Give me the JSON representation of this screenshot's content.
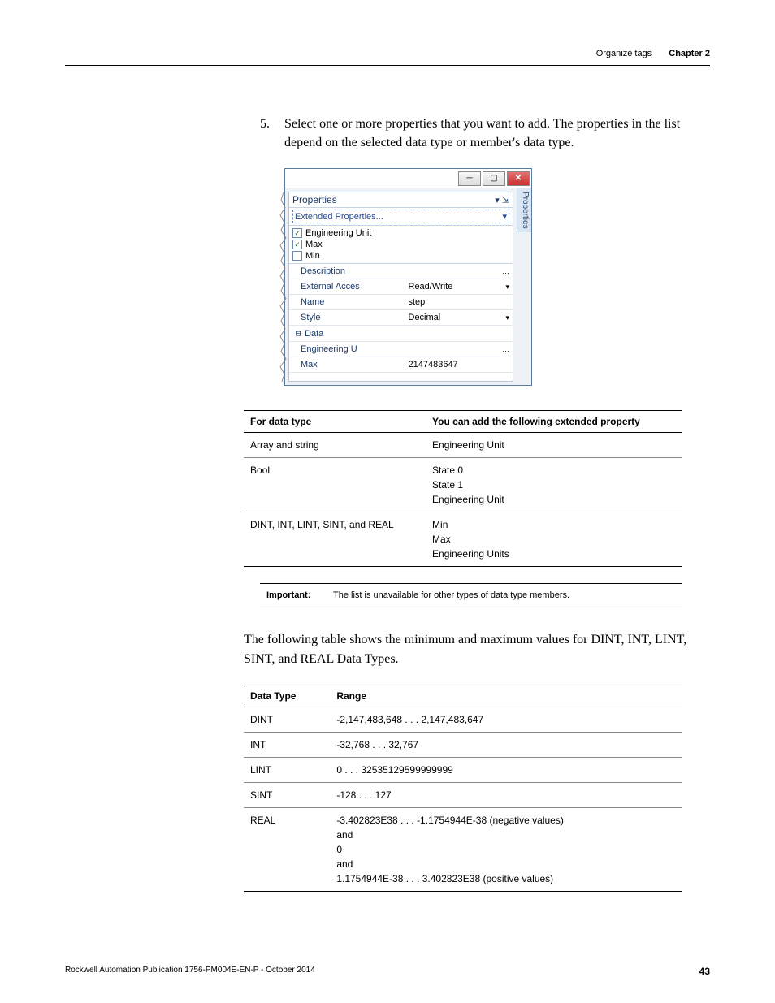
{
  "header": {
    "section": "Organize tags",
    "chapter": "Chapter 2"
  },
  "step": {
    "number": "5.",
    "text": "Select one or more properties that you want to add. The properties in the list depend on the selected data type or member's data type."
  },
  "panel": {
    "properties_label": "Properties",
    "dropdown_label": "Extended Properties...",
    "side_tab": "Properties",
    "checklist": [
      {
        "checked": true,
        "label": "Engineering Unit"
      },
      {
        "checked": true,
        "label": "Max"
      },
      {
        "checked": false,
        "label": "Min"
      }
    ],
    "rows": [
      {
        "label": "Description",
        "value": "",
        "tail": "…"
      },
      {
        "label": "External Acces",
        "value": "Read/Write",
        "tail": "▾"
      },
      {
        "label": "Name",
        "value": "step",
        "tail": ""
      },
      {
        "label": "Style",
        "value": "Decimal",
        "tail": "▾"
      }
    ],
    "data_label": "Data",
    "data_rows": [
      {
        "label": "Engineering U",
        "value": "",
        "tail": "…"
      },
      {
        "label": "Max",
        "value": "2147483647",
        "tail": ""
      }
    ],
    "colors": {
      "border": "#5a7aa0",
      "bg": "#eef2f7",
      "text": "#1a3a6a"
    }
  },
  "table1": {
    "headers": [
      "For data type",
      "You can add the following extended property"
    ],
    "rows": [
      [
        "Array and string",
        "Engineering Unit"
      ],
      [
        "Bool",
        "State 0\nState 1\nEngineering Unit"
      ],
      [
        "DINT, INT, LINT, SINT, and REAL",
        "Min\nMax\nEngineering Units"
      ]
    ]
  },
  "important": {
    "label": "Important:",
    "text": "The list is unavailable for other types of data type members."
  },
  "para2": "The following table shows the minimum and maximum values for DINT, INT, LINT, SINT, and REAL Data Types.",
  "table2": {
    "headers": [
      "Data Type",
      "Range"
    ],
    "rows": [
      [
        "DINT",
        "-2,147,483,648 . . . 2,147,483,647"
      ],
      [
        "INT",
        "-32,768 . . . 32,767"
      ],
      [
        "LINT",
        "0 . . . 32535129599999999"
      ],
      [
        "SINT",
        "-128 . . . 127"
      ],
      [
        "REAL",
        "-3.402823E38 . . . -1.1754944E-38   (negative values)\nand\n0\nand\n1.1754944E-38 . . . 3.402823E38   (positive values)"
      ]
    ]
  },
  "footer": {
    "pub": "Rockwell Automation Publication 1756-PM004E-EN-P - October 2014",
    "page": "43"
  }
}
